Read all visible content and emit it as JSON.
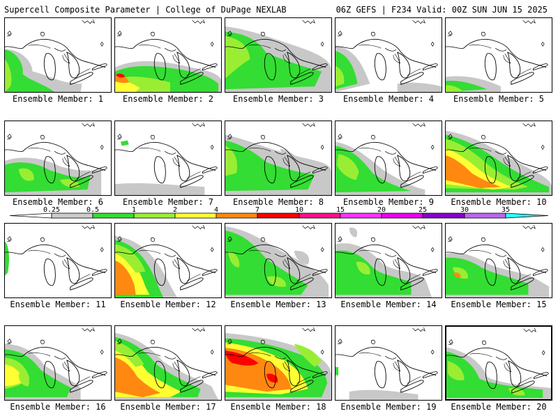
{
  "header": {
    "left": "Supercell Composite Parameter | College of DuPage NEXLAB",
    "right": "06Z GEFS | F234 Valid: 00Z SUN JUN 15 2025"
  },
  "members": [
    {
      "label": "Ensemble Member: 1"
    },
    {
      "label": "Ensemble Member: 2"
    },
    {
      "label": "Ensemble Member: 3"
    },
    {
      "label": "Ensemble Member: 4"
    },
    {
      "label": "Ensemble Member: 5"
    },
    {
      "label": "Ensemble Member: 6"
    },
    {
      "label": "Ensemble Member: 7"
    },
    {
      "label": "Ensemble Member: 8"
    },
    {
      "label": "Ensemble Member: 9"
    },
    {
      "label": "Ensemble Member: 10"
    },
    {
      "label": "Ensemble Member: 11"
    },
    {
      "label": "Ensemble Member: 12"
    },
    {
      "label": "Ensemble Member: 13"
    },
    {
      "label": "Ensemble Member: 14"
    },
    {
      "label": "Ensemble Member: 15"
    },
    {
      "label": "Ensemble Member: 16"
    },
    {
      "label": "Ensemble Member: 17"
    },
    {
      "label": "Ensemble Member: 18"
    },
    {
      "label": "Ensemble Member: 19"
    },
    {
      "label": "Ensemble Member: 20"
    }
  ],
  "colorbar": {
    "labels": [
      "0.25",
      "0.5",
      "1",
      "2",
      "4",
      "7",
      "10",
      "15",
      "20",
      "25",
      "30",
      "35"
    ],
    "colors": [
      "#ffffff",
      "#cccccc",
      "#33dd33",
      "#99ee33",
      "#ffff33",
      "#ff8811",
      "#ff0000",
      "#ff1188",
      "#ff33ff",
      "#ee00ee",
      "#8800cc",
      "#bb66ee",
      "#33ffff"
    ]
  },
  "map_colors": {
    "grey": "#c8c8c8",
    "green": "#33dd33",
    "lightgreen": "#99ee33",
    "yellow": "#ffff33",
    "orange": "#ff8811",
    "red": "#ff0000"
  }
}
